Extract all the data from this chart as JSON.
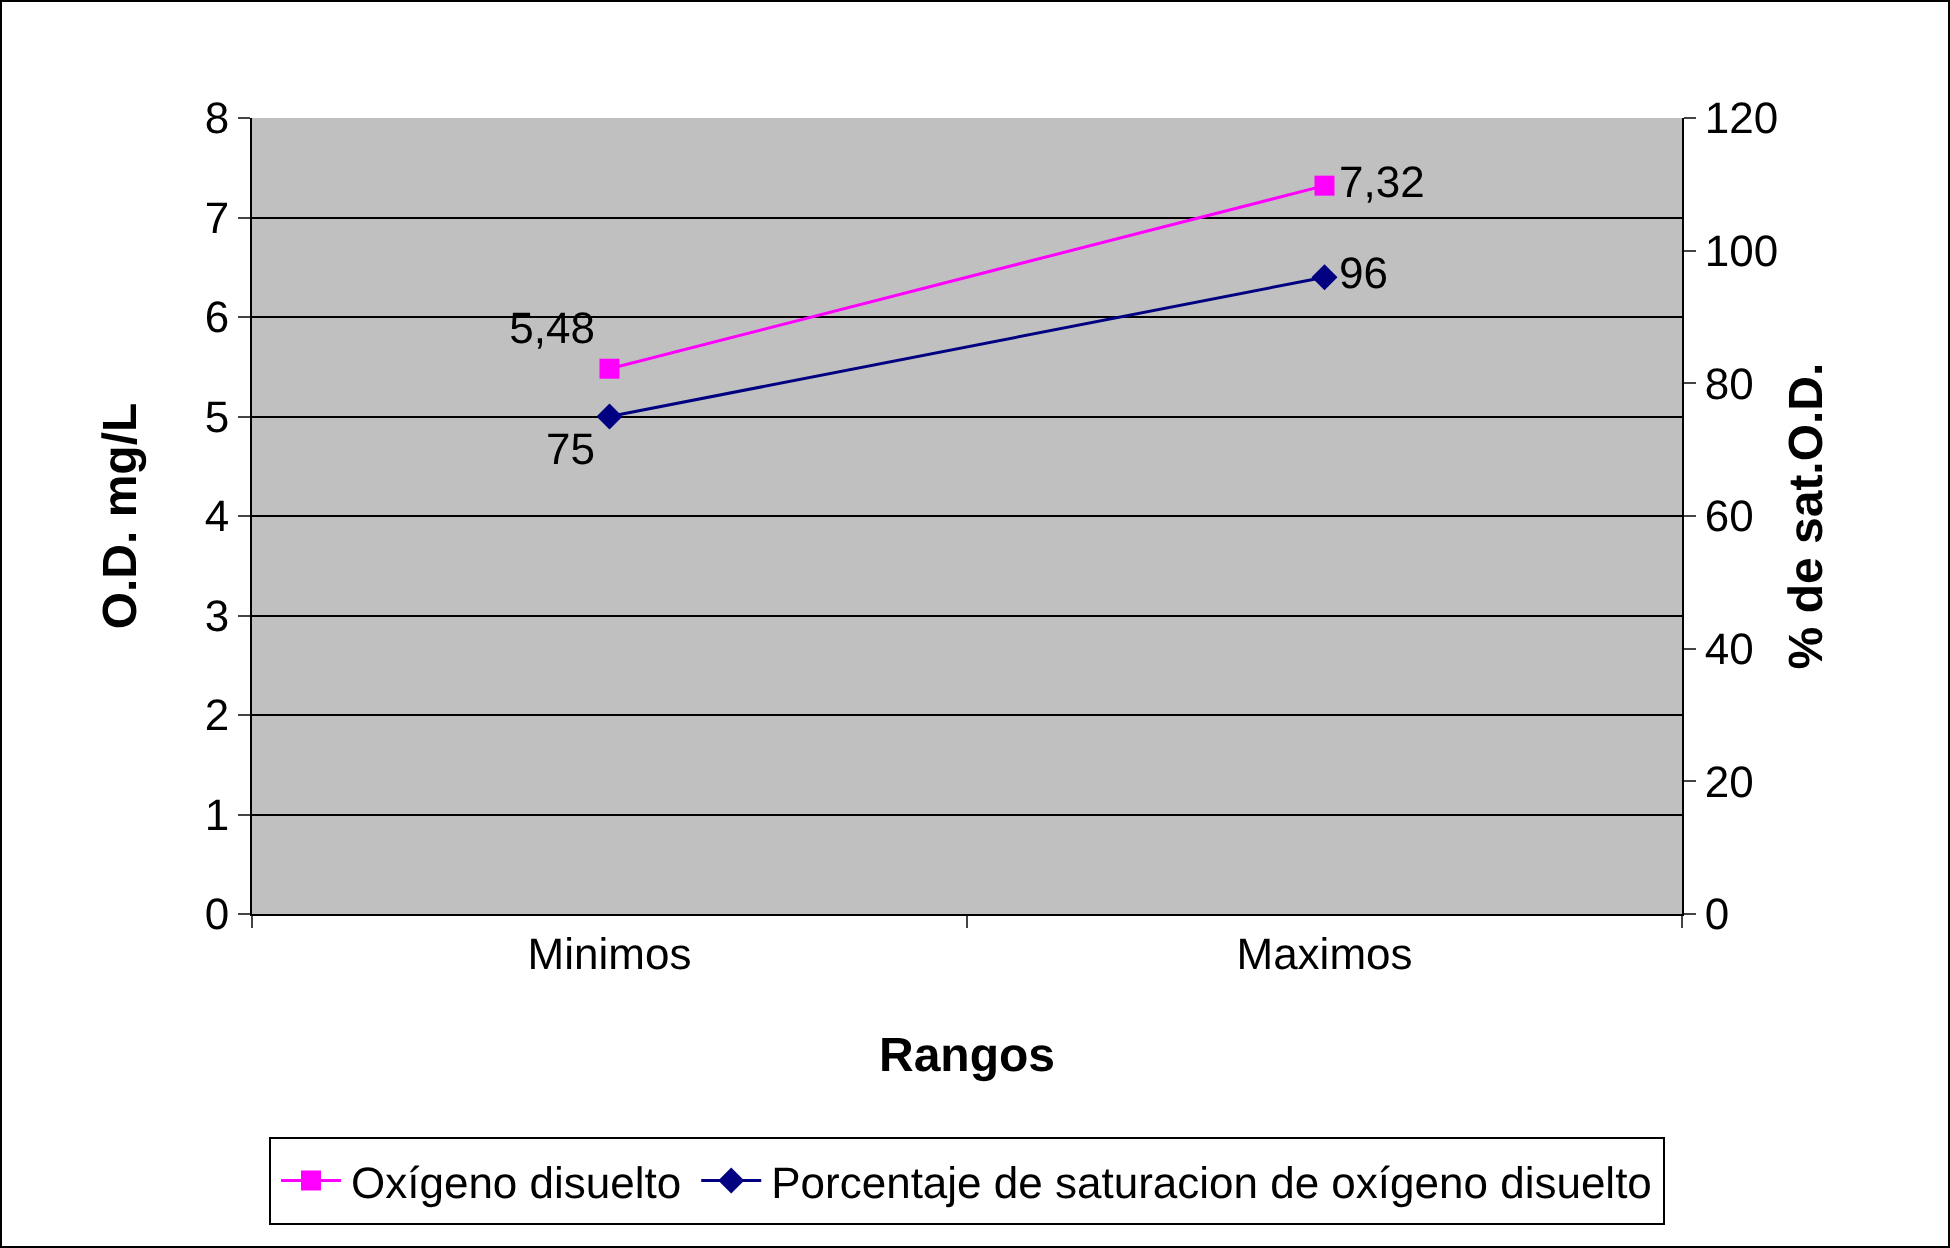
{
  "chart_data": {
    "type": "line",
    "xlabel": "Rangos",
    "ylabel": "O.D. mg/L",
    "y2label": "% de sat.O.D.",
    "categories": [
      "Minimos",
      "Maximos"
    ],
    "series": [
      {
        "name": "Oxígeno disuelto",
        "color": "#ff00ff",
        "marker": "square",
        "values": [
          5.48,
          7.32
        ],
        "value_labels": [
          "5,48",
          "7,32"
        ]
      },
      {
        "name": "Porcentaje de saturacion de oxígeno disuelto",
        "color": "#000080",
        "marker": "diamond",
        "axis": "y2",
        "values": [
          75,
          96
        ],
        "value_labels": [
          "75",
          "96"
        ]
      }
    ],
    "ylim": [
      0,
      8
    ],
    "yticks": [
      0,
      1,
      2,
      3,
      4,
      5,
      6,
      7,
      8
    ],
    "y2lim": [
      0,
      120
    ],
    "y2ticks": [
      0,
      20,
      40,
      60,
      80,
      100,
      120
    ],
    "grid": "y",
    "legend": "bottom"
  }
}
